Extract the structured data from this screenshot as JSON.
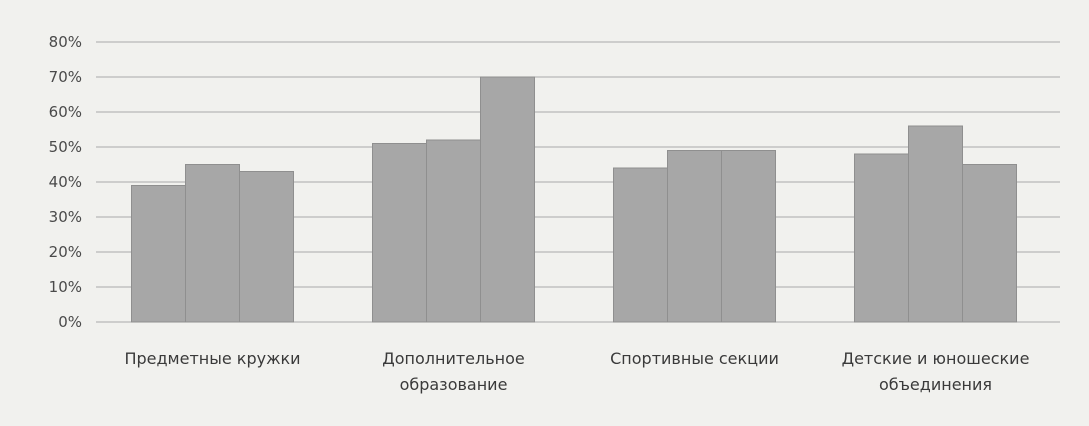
{
  "chart_data": {
    "type": "bar",
    "categories": [
      [
        "Предметные кружки"
      ],
      [
        "Дополнительное",
        "образование"
      ],
      [
        "Спортивные секции"
      ],
      [
        "Детские и юношеские",
        "объединения"
      ]
    ],
    "series": [
      {
        "values": [
          0.39,
          0.51,
          0.44,
          0.48
        ]
      },
      {
        "values": [
          0.45,
          0.52,
          0.49,
          0.56
        ]
      },
      {
        "values": [
          0.43,
          0.7,
          0.49,
          0.45
        ]
      }
    ],
    "y_ticks": [
      "0%",
      "10%",
      "20%",
      "30%",
      "40%",
      "50%",
      "60%",
      "70%",
      "80%"
    ],
    "ylim": [
      0,
      0.8
    ],
    "grid": true,
    "legend": "none",
    "colors": {
      "bar": "#a7a7a7",
      "bar_edge": "#8f8f8f",
      "grid": "#a9a9a9",
      "background": "#f1f1ee"
    }
  }
}
